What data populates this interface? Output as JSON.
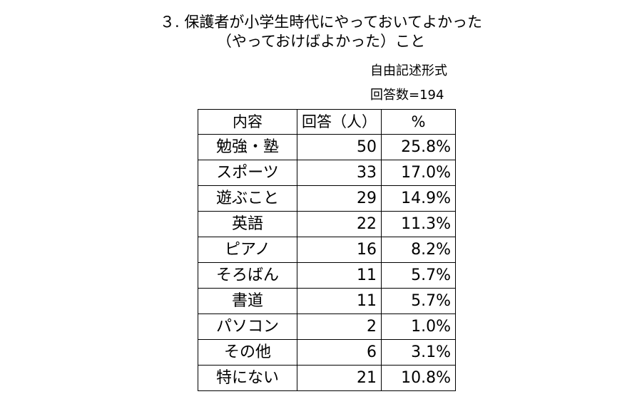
{
  "title": {
    "line1": "３. 保護者が小学生時代にやっておいてよかった",
    "line2": "（やっておけばよかった）こと"
  },
  "format_label": "自由記述形式",
  "respondents_label": "回答数=194",
  "table": {
    "headers": [
      "内容",
      "回答（人）",
      "%"
    ],
    "rows": [
      {
        "item": "勉強・塾",
        "count": "50",
        "percent": "25.8%"
      },
      {
        "item": "スポーツ",
        "count": "33",
        "percent": "17.0%"
      },
      {
        "item": "遊ぶこと",
        "count": "29",
        "percent": "14.9%"
      },
      {
        "item": "英語",
        "count": "22",
        "percent": "11.3%"
      },
      {
        "item": "ピアノ",
        "count": "16",
        "percent": "8.2%"
      },
      {
        "item": "そろばん",
        "count": "11",
        "percent": "5.7%"
      },
      {
        "item": "書道",
        "count": "11",
        "percent": "5.7%"
      },
      {
        "item": "パソコン",
        "count": "2",
        "percent": "1.0%"
      },
      {
        "item": "その他",
        "count": "6",
        "percent": "3.1%"
      },
      {
        "item": "特にない",
        "count": "21",
        "percent": "10.8%"
      }
    ]
  }
}
